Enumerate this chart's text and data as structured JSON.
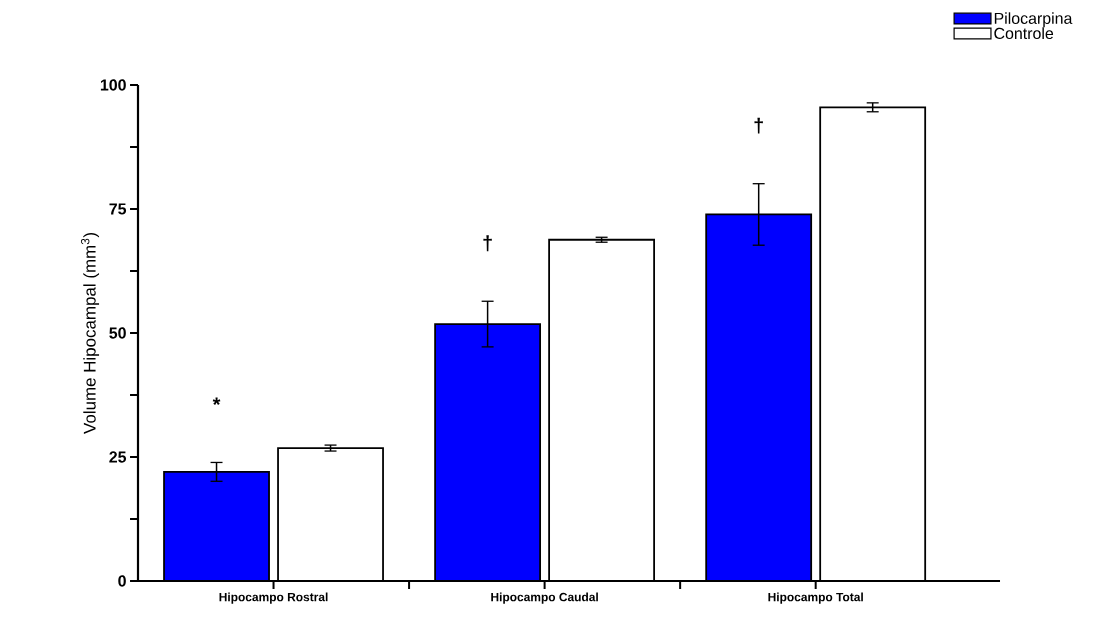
{
  "chart_data": {
    "type": "bar",
    "ylabel": "Volume Hipocampal (mm$^{3}$)",
    "categories": [
      "Hipocampo Rostral",
      "Hipocampo Caudal",
      "Hipocampo Total"
    ],
    "series": [
      {
        "name": "Pilocarpina",
        "color": "#0000ff",
        "values": [
          22.0,
          51.8,
          73.9
        ],
        "errors": [
          1.9,
          4.6,
          6.2
        ]
      },
      {
        "name": "Controle",
        "color": "#ffffff",
        "values": [
          26.8,
          68.8,
          95.5
        ],
        "errors": [
          0.6,
          0.5,
          0.9
        ]
      }
    ],
    "ylim": [
      0,
      100
    ],
    "yticks": [
      0,
      {
        "value": 12.5,
        "label": null
      },
      25,
      {
        "value": 37.5,
        "label": null
      },
      50,
      {
        "value": 62.5,
        "label": null
      },
      75,
      {
        "value": 87.5,
        "label": null
      },
      100
    ],
    "annotations": [
      "*",
      "†",
      "†"
    ],
    "legend": "top right",
    "grid": false
  }
}
